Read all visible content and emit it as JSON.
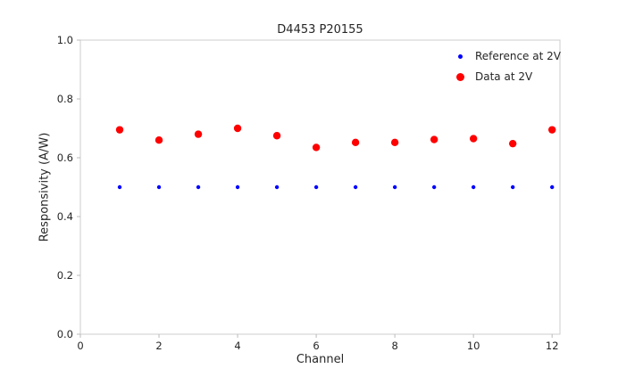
{
  "title": "D4453 P20155",
  "chart_data": {
    "type": "scatter",
    "title": "D4453 P20155",
    "xlabel": "Channel",
    "ylabel": "Responsivity (A/W)",
    "xlim": [
      0,
      12.2
    ],
    "ylim": [
      0.0,
      1.0
    ],
    "xticks": [
      0,
      2,
      4,
      6,
      8,
      10,
      12
    ],
    "yticks": [
      0.0,
      0.2,
      0.4,
      0.6,
      0.8,
      1.0
    ],
    "grid": false,
    "legend_position": "upper right",
    "x": [
      1,
      2,
      3,
      4,
      5,
      6,
      7,
      8,
      9,
      10,
      11,
      12
    ],
    "series": [
      {
        "name": "Reference at 2V",
        "color": "#0000ff",
        "marker_radius": 2.2,
        "legend_marker_px": 5,
        "values": [
          0.5,
          0.5,
          0.5,
          0.5,
          0.5,
          0.5,
          0.5,
          0.5,
          0.5,
          0.5,
          0.5,
          0.5
        ]
      },
      {
        "name": "Data at 2V",
        "color": "#ff0000",
        "marker_radius": 4.2,
        "legend_marker_px": 9,
        "values": [
          0.695,
          0.66,
          0.68,
          0.7,
          0.675,
          0.635,
          0.652,
          0.652,
          0.662,
          0.665,
          0.648,
          0.695
        ]
      }
    ]
  },
  "style": {
    "axis_box_color": "#cccccc",
    "tick_color": "#bbbbbb",
    "tick_label_color": "#262626"
  }
}
